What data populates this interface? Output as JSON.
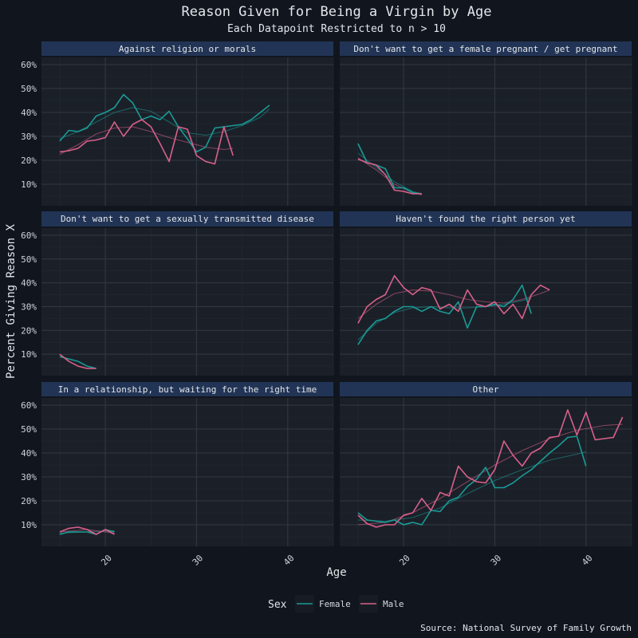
{
  "chart_data": {
    "type": "line",
    "title": "Reason Given for Being a Virgin by Age",
    "subtitle": "Each Datapoint Restricted to n > 10",
    "xlabel": "Age",
    "ylabel": "Percent Giving Reason X",
    "caption": "Source: National Survey of Family Growth",
    "xlim": [
      13,
      45
    ],
    "ylim": [
      1,
      63
    ],
    "x_ticks": [
      20,
      30,
      40
    ],
    "x_tick_labels": [
      "20",
      "30",
      "40"
    ],
    "y_ticks": [
      10,
      20,
      30,
      40,
      50,
      60
    ],
    "y_tick_labels": [
      "10%",
      "20%",
      "30%",
      "40%",
      "50%",
      "60%"
    ],
    "legend": {
      "title": "Sex",
      "position": "bottom",
      "entries": [
        {
          "name": "Female",
          "color": "#1a9a96"
        },
        {
          "name": "Male",
          "color": "#d9608a"
        }
      ]
    },
    "panels": [
      {
        "title": "Against religion or morals",
        "series": [
          {
            "name": "Female",
            "x": [
              15,
              16,
              17,
              18,
              19,
              20,
              21,
              22,
              23,
              24,
              25,
              26,
              27,
              28,
              29,
              30,
              31,
              32,
              33,
              34,
              35,
              36,
              37,
              38
            ],
            "y": [
              28,
              32.5,
              32,
              33.5,
              38.5,
              40,
              42,
              47.5,
              44,
              37,
              38.5,
              37,
              40.5,
              34,
              29,
              23.5,
              25.5,
              33.5,
              34,
              34.5,
              35,
              37,
              40,
              43
            ]
          },
          {
            "name": "Male",
            "x": [
              15,
              16,
              17,
              18,
              19,
              20,
              21,
              22,
              23,
              24,
              25,
              26,
              27,
              28,
              29,
              30,
              31,
              32,
              33,
              34
            ],
            "y": [
              23.5,
              24,
              25,
              28,
              28.5,
              29.5,
              36,
              30,
              35,
              37,
              34,
              27,
              19.5,
              34,
              33,
              22,
              19.5,
              18.5,
              34,
              22
            ]
          }
        ],
        "trend": [
          {
            "name": "Female",
            "x": [
              15,
              17,
              19,
              21,
              23,
              25,
              27,
              29,
              31,
              33,
              35,
              37,
              38
            ],
            "y": [
              29,
              32,
              36,
              40,
              42,
              40.5,
              36,
              31.5,
              30.5,
              32,
              34.5,
              38,
              41.5
            ]
          },
          {
            "name": "Male",
            "x": [
              15,
              17,
              19,
              21,
              23,
              25,
              27,
              29,
              31,
              33,
              34
            ],
            "y": [
              22.5,
              26.5,
              31,
              33.5,
              34,
              32,
              29.5,
              27.5,
              25.5,
              24.5,
              25
            ]
          }
        ]
      },
      {
        "title": "Don't want to get a female pregnant / get pregnant",
        "series": [
          {
            "name": "Female",
            "x": [
              15,
              16,
              17,
              18,
              19,
              20,
              21,
              22
            ],
            "y": [
              27,
              19,
              18,
              16.5,
              8.5,
              8.5,
              6.5,
              6
            ]
          },
          {
            "name": "Male",
            "x": [
              15,
              16,
              17,
              18,
              19,
              20,
              21,
              22
            ],
            "y": [
              20.5,
              19,
              18,
              14,
              7.5,
              7,
              6,
              6
            ]
          }
        ],
        "trend": [
          {
            "name": "Female",
            "x": [
              15,
              17,
              19,
              21,
              22
            ],
            "y": [
              23,
              17,
              11,
              7,
              6
            ]
          },
          {
            "name": "Male",
            "x": [
              15,
              17,
              19,
              21,
              22
            ],
            "y": [
              21,
              16,
              10,
              6.5,
              5.5
            ]
          }
        ]
      },
      {
        "title": "Don't want to get a sexually transmitted disease",
        "series": [
          {
            "name": "Female",
            "x": [
              15,
              16,
              17,
              18,
              19
            ],
            "y": [
              9,
              8,
              7,
              5,
              4
            ]
          },
          {
            "name": "Male",
            "x": [
              15,
              16,
              17,
              18,
              19
            ],
            "y": [
              10,
              7,
              5,
              4,
              4
            ]
          }
        ],
        "trend": []
      },
      {
        "title": "Haven't found the right person yet",
        "series": [
          {
            "name": "Female",
            "x": [
              15,
              16,
              17,
              18,
              19,
              20,
              21,
              22,
              23,
              24,
              25,
              26,
              27,
              28,
              29,
              30,
              31,
              32,
              33,
              34
            ],
            "y": [
              14,
              20,
              24,
              25,
              28,
              30,
              30,
              28,
              30,
              28,
              27,
              32,
              21,
              30,
              30,
              31,
              30,
              33,
              39,
              27
            ]
          },
          {
            "name": "Male",
            "x": [
              15,
              16,
              17,
              18,
              19,
              20,
              21,
              22,
              23,
              24,
              25,
              26,
              27,
              28,
              29,
              30,
              31,
              32,
              33,
              34,
              35,
              36
            ],
            "y": [
              23,
              30,
              33,
              35,
              43,
              38,
              35,
              38,
              37,
              29,
              31,
              28,
              37,
              31,
              30,
              32,
              27,
              31,
              25,
              35,
              39,
              37
            ]
          }
        ],
        "trend": [
          {
            "name": "Female",
            "x": [
              15,
              17,
              19,
              21,
              23,
              25,
              27,
              29,
              31,
              33,
              34
            ],
            "y": [
              16,
              23,
              27.5,
              29.5,
              30,
              29.5,
              29.5,
              30,
              31,
              32.5,
              33.5
            ]
          },
          {
            "name": "Male",
            "x": [
              15,
              17,
              19,
              21,
              23,
              25,
              27,
              29,
              31,
              33,
              35,
              36
            ],
            "y": [
              25,
              31,
              35.5,
              37,
              36.5,
              35,
              33,
              32,
              31.5,
              33,
              35.5,
              37
            ]
          }
        ]
      },
      {
        "title": "In a relationship, but waiting for the right time",
        "series": [
          {
            "name": "Female",
            "x": [
              15,
              16,
              17,
              18,
              19,
              20,
              21
            ],
            "y": [
              6,
              7,
              7,
              7,
              6,
              8,
              7
            ]
          },
          {
            "name": "Male",
            "x": [
              15,
              16,
              17,
              18,
              19,
              20,
              21
            ],
            "y": [
              7,
              8.5,
              9,
              8,
              6,
              8,
              6
            ]
          }
        ],
        "trend": [
          {
            "name": "Female",
            "x": [
              15,
              18,
              21
            ],
            "y": [
              6.5,
              7,
              7.5
            ]
          },
          {
            "name": "Male",
            "x": [
              15,
              18,
              21
            ],
            "y": [
              7,
              8,
              6.5
            ]
          }
        ]
      },
      {
        "title": "Other",
        "series": [
          {
            "name": "Female",
            "x": [
              15,
              16,
              17,
              18,
              19,
              20,
              21,
              22,
              23,
              24,
              25,
              26,
              27,
              28,
              29,
              30,
              31,
              32,
              33,
              34,
              35,
              36,
              37,
              38,
              39,
              40
            ],
            "y": [
              15,
              12,
              11.5,
              11,
              12,
              10,
              11,
              10,
              16,
              15.5,
              20,
              21.5,
              26,
              29,
              34,
              25.5,
              25.5,
              27.5,
              30.5,
              33,
              36.5,
              40,
              43,
              46.5,
              47,
              34.5
            ]
          },
          {
            "name": "Male",
            "x": [
              15,
              16,
              17,
              18,
              19,
              20,
              21,
              22,
              23,
              24,
              25,
              26,
              27,
              28,
              29,
              30,
              31,
              32,
              33,
              34,
              35,
              36,
              37,
              38,
              39,
              40,
              41,
              42,
              43,
              44
            ],
            "y": [
              14,
              10.5,
              9,
              10,
              10,
              14,
              15,
              21,
              16,
              23.5,
              22,
              34.5,
              30,
              28,
              27.5,
              33,
              45,
              39,
              34.5,
              40,
              42,
              46.5,
              47,
              58,
              47.5,
              57,
              45.5,
              46,
              46.5,
              55
            ]
          }
        ],
        "trend": [
          {
            "name": "Female",
            "x": [
              15,
              18,
              21,
              24,
              27,
              30,
              33,
              36,
              39,
              40
            ],
            "y": [
              12,
              11.5,
              13,
              17,
              23,
              28.5,
              33,
              37,
              39.5,
              40.5
            ]
          },
          {
            "name": "Male",
            "x": [
              15,
              18,
              21,
              24,
              27,
              30,
              33,
              36,
              39,
              42,
              44
            ],
            "y": [
              10,
              11,
              15,
              21,
              28,
              35,
              41,
              46,
              49.5,
              51.5,
              52
            ]
          }
        ]
      }
    ]
  }
}
